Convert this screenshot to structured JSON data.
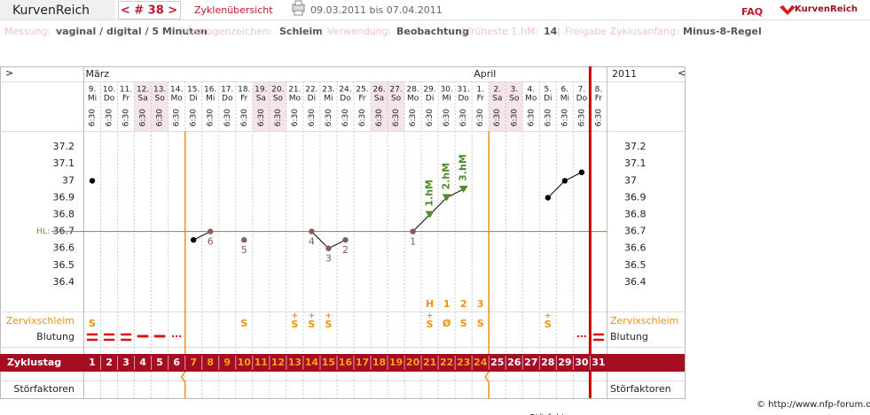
{
  "header": {
    "app": "KurvenReich",
    "cycle_nav": "< # 38 >",
    "overview": "Zyklenübersicht",
    "date_range": "09.03.2011 bis 07.04.2011",
    "faq": "FAQ",
    "logo": "KurvenReich"
  },
  "settings_separator": "|",
  "settings_bar": [
    {
      "label": "Messung:",
      "value": "vaginal / digital / 5 Minuten"
    },
    {
      "label": "Östrogenzeichen:",
      "value": "Schleim"
    },
    {
      "label": "Verwendung:",
      "value": "Beobachtung"
    },
    {
      "label": "früheste 1.hM:",
      "value": "14"
    },
    {
      "label": "Freigabe Zyklusanfang:",
      "value": "Minus-8-Regel"
    }
  ],
  "chart_data": {
    "type": "line",
    "nav_left": ">",
    "nav_right": "<",
    "year": "2011",
    "months": [
      {
        "label": "März",
        "index": 0
      },
      {
        "label": "April",
        "index": 23
      }
    ],
    "dates": [
      "9.",
      "10.",
      "11.",
      "12.",
      "13.",
      "14.",
      "15.",
      "16.",
      "17.",
      "18.",
      "19.",
      "20.",
      "21.",
      "22.",
      "23.",
      "24.",
      "25.",
      "26.",
      "27.",
      "28.",
      "29.",
      "30.",
      "31.",
      "1.",
      "2.",
      "3.",
      "4.",
      "5.",
      "6.",
      "7.",
      "8."
    ],
    "weekdays": [
      "Mi",
      "Do",
      "Fr",
      "Sa",
      "So",
      "Mo",
      "Di",
      "Mi",
      "Do",
      "Fr",
      "Sa",
      "So",
      "Mo",
      "Di",
      "Mi",
      "Do",
      "Fr",
      "Sa",
      "So",
      "Mo",
      "Di",
      "Mi",
      "Do",
      "Fr",
      "Sa",
      "So",
      "Mo",
      "Di",
      "Mi",
      "Do",
      "Fr"
    ],
    "times": [
      "6:30",
      "6:30",
      "6:30",
      "6:30",
      "6:30",
      "6:30",
      "6:30",
      "6:30",
      "6:30",
      "6:30",
      "6:30",
      "6:30",
      "6:30",
      "6:30",
      "6:30",
      "6:30",
      "6:30",
      "6:30",
      "6:30",
      "6:30",
      "6:30",
      "6:30",
      "6:30",
      "6:30",
      "6:30",
      "6:30",
      "6:30",
      "6:30",
      "6:30",
      "6:30",
      "6:30"
    ],
    "ylim": [
      36.3,
      37.3
    ],
    "yticks": [
      36.4,
      36.5,
      36.6,
      36.7,
      36.8,
      36.9,
      37,
      37.1,
      37.2
    ],
    "values": [
      37.0,
      null,
      null,
      null,
      null,
      null,
      36.65,
      36.7,
      null,
      36.65,
      null,
      null,
      null,
      36.7,
      36.6,
      36.65,
      null,
      null,
      null,
      36.7,
      36.8,
      36.9,
      36.95,
      null,
      null,
      null,
      null,
      36.9,
      37.0,
      37.05,
      null
    ],
    "line_color": "#000000",
    "point_colors": [
      "#000000",
      null,
      null,
      null,
      null,
      null,
      "#000000",
      "#8b5a5a",
      null,
      "#8b5a5a",
      null,
      null,
      null,
      "#8b5a5a",
      "#8b5a5a",
      "#8b5a5a",
      null,
      null,
      null,
      "#8b5a5a",
      "#4f8a2b",
      "#4f8a2b",
      "#4f8a2b",
      null,
      null,
      null,
      null,
      "#000000",
      "#000000",
      "#000000",
      null
    ],
    "point_labels": [
      null,
      null,
      null,
      null,
      null,
      null,
      null,
      "6",
      null,
      "5",
      null,
      null,
      null,
      "4",
      "3",
      "2",
      null,
      null,
      null,
      "1",
      null,
      null,
      null,
      null,
      null,
      null,
      null,
      null,
      null,
      null,
      null
    ],
    "hm_labels": [
      null,
      null,
      null,
      null,
      null,
      null,
      null,
      null,
      null,
      null,
      null,
      null,
      null,
      null,
      null,
      null,
      null,
      null,
      null,
      null,
      "1.hM",
      "2.hM",
      "3.hM",
      null,
      null,
      null,
      null,
      null,
      null,
      null,
      null
    ],
    "hl": {
      "label": "HL:",
      "value": 36.7,
      "color": "#7d8b3a"
    },
    "peak_row": [
      null,
      null,
      null,
      null,
      null,
      null,
      null,
      null,
      null,
      null,
      null,
      null,
      null,
      null,
      null,
      null,
      null,
      null,
      null,
      null,
      "H",
      "1",
      "2",
      "3",
      null,
      null,
      null,
      null,
      null,
      null,
      null
    ],
    "cervix_label": "Zervixschleim",
    "cervix": [
      "S",
      null,
      null,
      null,
      null,
      null,
      null,
      null,
      null,
      "S",
      null,
      null,
      {
        "symbol": "S",
        "mark": "+"
      },
      {
        "symbol": "S",
        "mark": "+"
      },
      {
        "symbol": "S",
        "mark": "+"
      },
      null,
      null,
      null,
      null,
      null,
      {
        "symbol": "S",
        "mark": "+"
      },
      "Ø",
      "S",
      "S",
      null,
      null,
      null,
      {
        "symbol": "S",
        "mark": "+"
      },
      null,
      null,
      null
    ],
    "cervix_color": "#f0900f",
    "bleeding_label": "Blutung",
    "bleeding": [
      3,
      3,
      3,
      2,
      2,
      1,
      null,
      null,
      null,
      null,
      null,
      null,
      null,
      null,
      null,
      null,
      null,
      null,
      null,
      null,
      null,
      null,
      null,
      null,
      null,
      null,
      null,
      null,
      null,
      1,
      3
    ],
    "bleeding_color": "#dd1111",
    "cycle_day_label": "Zyklustag",
    "cycle_days": [
      1,
      2,
      3,
      4,
      5,
      6,
      7,
      8,
      9,
      10,
      11,
      12,
      13,
      14,
      15,
      16,
      17,
      18,
      19,
      20,
      21,
      22,
      23,
      24,
      25,
      26,
      27,
      28,
      29,
      30,
      31
    ],
    "fertile_days": [
      7,
      24
    ],
    "disturbance_label": "Störfaktoren",
    "boundaries": [
      {
        "after": 6,
        "color": "#f0900f"
      },
      {
        "after": 24,
        "color": "#f0900f"
      },
      {
        "after": 30,
        "color": "#cc0000"
      }
    ]
  },
  "footer": {
    "copyright": "© http://www.nfp-forum.de",
    "cut_off": "Störfaktoren"
  }
}
